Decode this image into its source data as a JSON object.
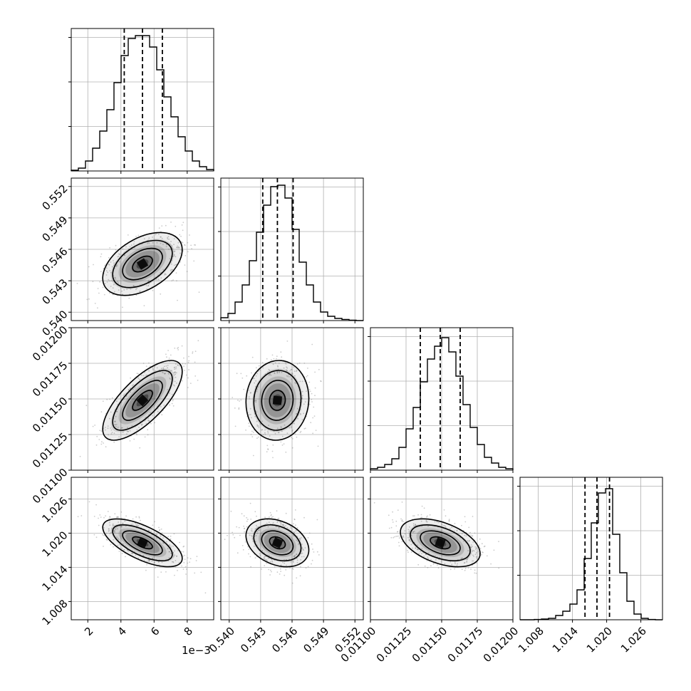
{
  "chart_data": {
    "type": "corner",
    "parameters": [
      {
        "ticks": [
          2,
          4,
          6,
          8
        ],
        "tick_labels": [
          "2",
          "4",
          "6",
          "8"
        ],
        "range": [
          1.0,
          9.6
        ],
        "offset_label": "1e−3"
      },
      {
        "ticks": [
          0.54,
          0.543,
          0.546,
          0.549,
          0.552
        ],
        "tick_labels": [
          "0.540",
          "0.543",
          "0.546",
          "0.549",
          "0.552"
        ],
        "range": [
          0.5392,
          0.5528
        ],
        "offset_label": ""
      },
      {
        "ticks": [
          0.011,
          0.01125,
          0.0115,
          0.01175,
          0.012
        ],
        "tick_labels": [
          "0.01100",
          "0.01125",
          "0.01150",
          "0.01175",
          "0.01200"
        ],
        "range": [
          0.011,
          0.012
        ],
        "offset_label": ""
      },
      {
        "ticks": [
          1.008,
          1.014,
          1.02,
          1.026
        ],
        "tick_labels": [
          "1.008",
          "1.014",
          "1.020",
          "1.026"
        ],
        "range": [
          1.0048,
          1.0298
        ],
        "offset_label": ""
      }
    ],
    "histograms": [
      {
        "bin_start": 1.0,
        "bin_width": 0.43,
        "counts": [
          0.005,
          0.02,
          0.07,
          0.16,
          0.28,
          0.43,
          0.62,
          0.81,
          0.93,
          0.95,
          0.95,
          0.87,
          0.71,
          0.52,
          0.38,
          0.24,
          0.14,
          0.07,
          0.03,
          0.01
        ],
        "quantiles": [
          4.2,
          5.3,
          6.5
        ]
      },
      {
        "bin_start": 0.5392,
        "bin_width": 0.00068,
        "counts": [
          0.02,
          0.05,
          0.13,
          0.25,
          0.42,
          0.62,
          0.81,
          0.94,
          0.95,
          0.86,
          0.64,
          0.41,
          0.25,
          0.13,
          0.06,
          0.03,
          0.015,
          0.008,
          0.003,
          0.0
        ],
        "quantiles": [
          0.5432,
          0.5446,
          0.5461
        ]
      },
      {
        "bin_start": 0.011,
        "bin_width": 5e-05,
        "counts": [
          0.01,
          0.02,
          0.04,
          0.08,
          0.16,
          0.29,
          0.44,
          0.62,
          0.78,
          0.87,
          0.93,
          0.83,
          0.66,
          0.46,
          0.3,
          0.18,
          0.09,
          0.05,
          0.02,
          0.01
        ],
        "quantiles": [
          0.01135,
          0.01149,
          0.01163
        ]
      },
      {
        "bin_start": 1.0048,
        "bin_width": 0.00125,
        "counts": [
          0.0,
          0.0,
          0.002,
          0.005,
          0.01,
          0.03,
          0.06,
          0.11,
          0.21,
          0.43,
          0.68,
          0.89,
          0.92,
          0.6,
          0.33,
          0.13,
          0.04,
          0.01,
          0.002,
          0.0
        ],
        "quantiles": [
          1.0162,
          1.0183,
          1.0205
        ]
      }
    ],
    "pairs": [
      {
        "x": 0,
        "y": 1,
        "mean": [
          5.3,
          0.5446
        ],
        "std": [
          1.2,
          0.0015
        ],
        "rho": 0.45
      },
      {
        "x": 0,
        "y": 2,
        "mean": [
          5.3,
          0.01149
        ],
        "std": [
          1.2,
          0.00014
        ],
        "rho": 0.72
      },
      {
        "x": 1,
        "y": 2,
        "mean": [
          0.5446,
          0.01149
        ],
        "std": [
          0.0015,
          0.00014
        ],
        "rho": 0.05
      },
      {
        "x": 0,
        "y": 3,
        "mean": [
          5.3,
          1.0183
        ],
        "std": [
          1.2,
          0.0021
        ],
        "rho": -0.65
      },
      {
        "x": 1,
        "y": 3,
        "mean": [
          0.5446,
          1.0183
        ],
        "std": [
          0.0015,
          0.0021
        ],
        "rho": -0.3
      },
      {
        "x": 2,
        "y": 3,
        "mean": [
          0.01149,
          1.0183
        ],
        "std": [
          0.00014,
          0.0021
        ],
        "rho": -0.45
      }
    ],
    "contour_levels_sigma": [
      0.5,
      1.0,
      1.5,
      2.0
    ],
    "grid": true,
    "colors": {
      "line": "#000000",
      "scatter": "#7f7f7f",
      "grid": "#b0b0b0",
      "density": "#000000"
    }
  }
}
